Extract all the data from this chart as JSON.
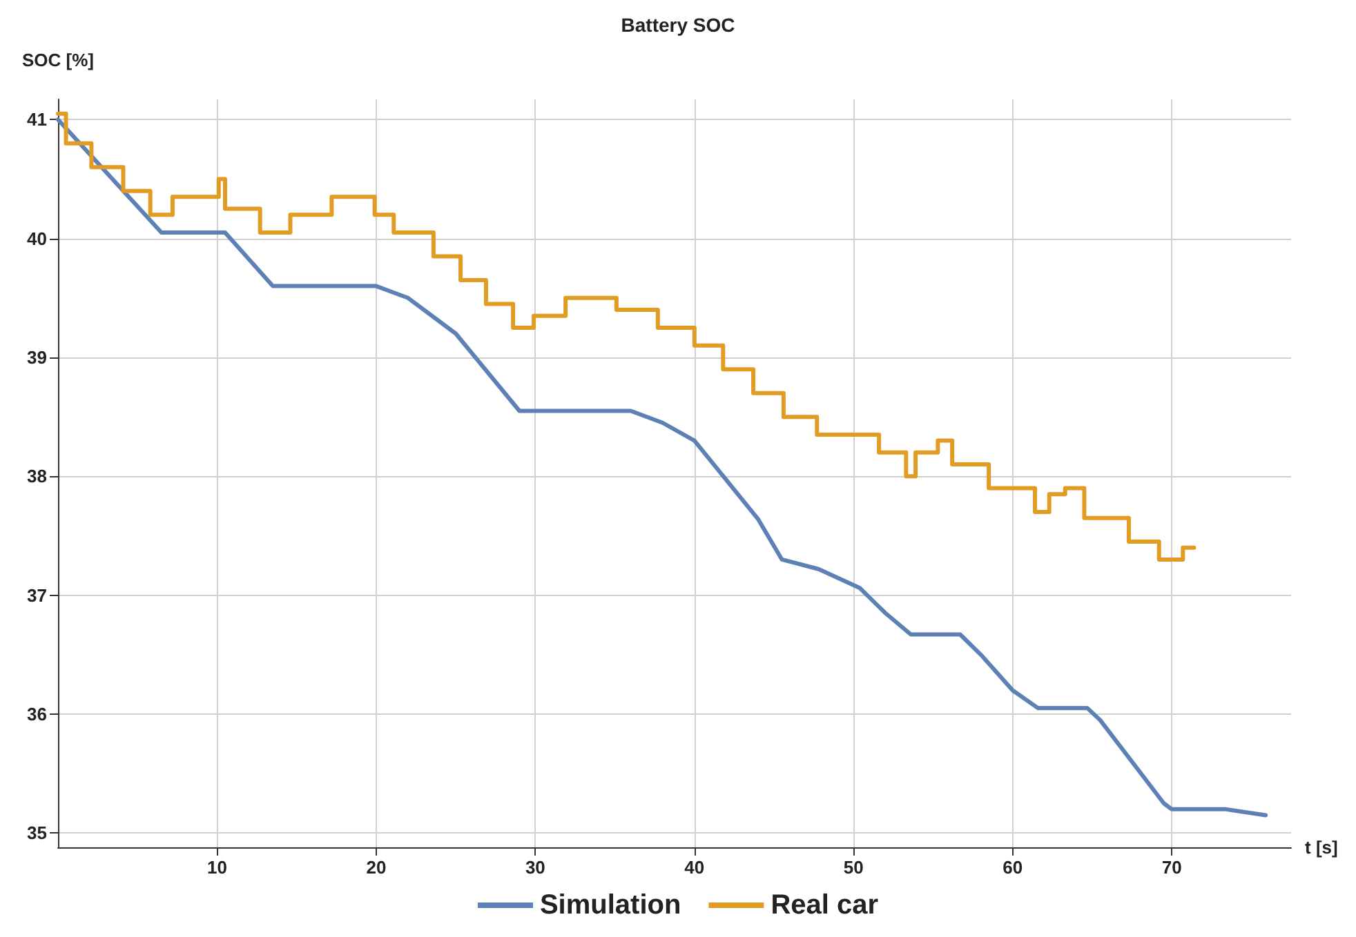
{
  "chart_data": {
    "type": "line",
    "title": "Battery SOC",
    "xlabel": "t [s]",
    "ylabel": "SOC [%]",
    "xlim": [
      0,
      77.5
    ],
    "xticks": [
      10,
      20,
      30,
      40,
      50,
      60,
      70
    ],
    "ylim": [
      34.88,
      41.17
    ],
    "yticks": [
      35,
      36,
      37,
      38,
      39,
      40,
      41
    ],
    "grid": true,
    "legend": "bottom",
    "marker": "none",
    "line_style": "solid",
    "series": [
      {
        "name": "Simulation",
        "color": "#5e81b5",
        "x": [
          0,
          6.5,
          10.5,
          13.5,
          20,
          21,
          22,
          25,
          29,
          36,
          38,
          40,
          44,
          45.5,
          47.8,
          50.4,
          52,
          53.6,
          56.7,
          58,
          60,
          61.6,
          64.7,
          65.5,
          69.5,
          70,
          73.4,
          75.9
        ],
        "values": [
          41.0,
          40.05,
          40.05,
          39.6,
          39.6,
          39.55,
          39.5,
          39.2,
          38.55,
          38.55,
          38.45,
          38.3,
          37.64,
          37.3,
          37.22,
          37.06,
          36.85,
          36.67,
          36.67,
          36.5,
          36.2,
          36.05,
          36.05,
          35.95,
          35.25,
          35.2,
          35.2,
          35.15
        ]
      },
      {
        "name": "Real car",
        "type": "step",
        "color": "#e19c24",
        "x": [
          0,
          0.5,
          2.1,
          4.1,
          5.8,
          7.2,
          10.1,
          10.5,
          12.7,
          14.6,
          17.2,
          19.9,
          21.1,
          23.6,
          25.3,
          26.9,
          28.6,
          29.9,
          31.9,
          35.1,
          37.7,
          40.0,
          41.8,
          43.7,
          45.6,
          47.7,
          51.6,
          53.3,
          53.9,
          55.3,
          56.2,
          58.5,
          61.4,
          62.3,
          63.3,
          64.5,
          67.3,
          69.2,
          70.7,
          71.4
        ],
        "values": [
          41.05,
          40.8,
          40.6,
          40.4,
          40.2,
          40.35,
          40.5,
          40.25,
          40.05,
          40.2,
          40.35,
          40.2,
          40.05,
          39.85,
          39.65,
          39.45,
          39.25,
          39.35,
          39.5,
          39.4,
          39.25,
          39.1,
          38.9,
          38.7,
          38.5,
          38.35,
          38.2,
          38.0,
          38.2,
          38.3,
          38.1,
          37.9,
          37.7,
          37.85,
          37.9,
          37.65,
          37.45,
          37.3,
          37.4,
          37.4
        ]
      }
    ]
  }
}
